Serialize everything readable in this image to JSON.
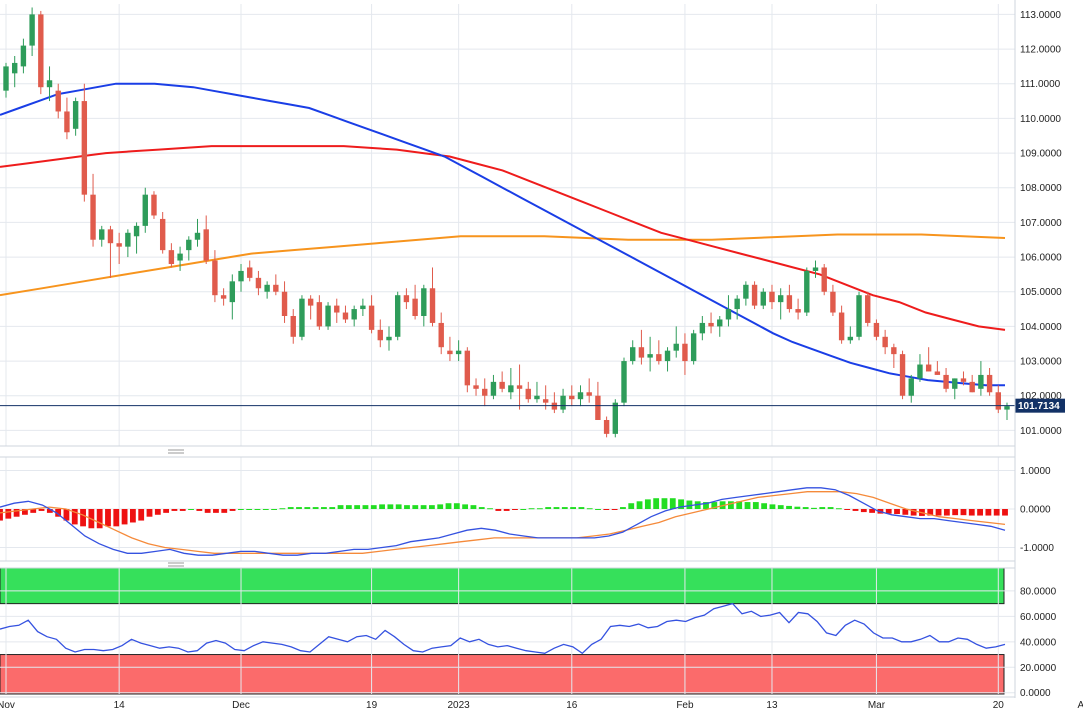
{
  "colors": {
    "up": "#2e9c5a",
    "down": "#e05b4c",
    "sma_fast": "#1a3ee6",
    "sma_mid": "#ee1c1c",
    "sma_slow": "#f7941d",
    "grid": "#e4e8ee",
    "macd_line": "#3552e0",
    "macd_signal": "#f58a3a",
    "hist_pos": "#22dd22",
    "hist_neg": "#ee1111",
    "rsi_line": "#3552e0",
    "rsi_over": "#36e05b",
    "rsi_under": "#fb6b6b",
    "badge": "#123166"
  },
  "chart_data": [
    {
      "type": "candlestick",
      "panel": "price",
      "title": "",
      "ylim": [
        100.55,
        113.3
      ],
      "yticks": [
        "113.0000",
        "112.0000",
        "111.0000",
        "110.0000",
        "109.0000",
        "108.0000",
        "107.0000",
        "106.0000",
        "105.0000",
        "104.0000",
        "103.0000",
        "102.0000",
        "101.0000"
      ],
      "last_price": 101.7134,
      "last_price_label": "101.7134",
      "x_labels": [
        {
          "label": "Nov",
          "index": 0
        },
        {
          "label": "14",
          "index": 13
        },
        {
          "label": "Dec",
          "index": 27
        },
        {
          "label": "19",
          "index": 42
        },
        {
          "label": "2023",
          "index": 52
        },
        {
          "label": "16",
          "index": 65
        },
        {
          "label": "Feb",
          "index": 78
        },
        {
          "label": "13",
          "index": 88
        },
        {
          "label": "Mar",
          "index": 100
        },
        {
          "label": "20",
          "index": 114
        },
        {
          "label": "Apr",
          "index": 124
        }
      ],
      "candles_ohlc": [
        [
          110.8,
          111.6,
          110.6,
          111.5
        ],
        [
          111.3,
          111.8,
          110.9,
          111.6
        ],
        [
          111.5,
          112.3,
          111.3,
          112.1
        ],
        [
          112.1,
          113.2,
          111.8,
          113.0
        ],
        [
          113.0,
          113.1,
          110.7,
          110.9
        ],
        [
          110.9,
          111.5,
          110.5,
          111.1
        ],
        [
          110.8,
          111.0,
          110.0,
          110.2
        ],
        [
          110.2,
          110.6,
          109.4,
          109.6
        ],
        [
          109.7,
          110.6,
          109.5,
          110.5
        ],
        [
          110.5,
          111.0,
          107.6,
          107.8
        ],
        [
          107.8,
          108.4,
          106.3,
          106.5
        ],
        [
          106.5,
          106.9,
          106.3,
          106.8
        ],
        [
          106.8,
          106.9,
          105.4,
          106.4
        ],
        [
          106.4,
          106.7,
          105.8,
          106.3
        ],
        [
          106.3,
          106.8,
          106.0,
          106.7
        ],
        [
          106.6,
          107.0,
          106.1,
          106.9
        ],
        [
          106.9,
          108.0,
          106.7,
          107.8
        ],
        [
          107.8,
          107.9,
          107.1,
          107.2
        ],
        [
          107.1,
          107.3,
          106.1,
          106.2
        ],
        [
          106.2,
          106.4,
          105.7,
          105.8
        ],
        [
          105.9,
          106.3,
          105.6,
          106.1
        ],
        [
          106.2,
          106.6,
          105.9,
          106.5
        ],
        [
          106.5,
          107.1,
          106.3,
          106.7
        ],
        [
          106.8,
          107.2,
          105.8,
          105.9
        ],
        [
          105.9,
          106.2,
          104.7,
          104.9
        ],
        [
          104.9,
          105.1,
          104.6,
          104.8
        ],
        [
          104.7,
          105.5,
          104.2,
          105.3
        ],
        [
          105.3,
          105.8,
          105.0,
          105.6
        ],
        [
          105.7,
          105.9,
          105.3,
          105.4
        ],
        [
          105.4,
          105.6,
          104.9,
          105.1
        ],
        [
          105.0,
          105.3,
          104.8,
          105.2
        ],
        [
          105.2,
          105.5,
          104.9,
          105.0
        ],
        [
          105.0,
          105.3,
          104.1,
          104.3
        ],
        [
          104.3,
          104.5,
          103.5,
          103.7
        ],
        [
          103.7,
          104.9,
          103.6,
          104.8
        ],
        [
          104.8,
          104.9,
          104.2,
          104.6
        ],
        [
          104.7,
          104.9,
          103.9,
          104.0
        ],
        [
          104.0,
          104.7,
          103.9,
          104.6
        ],
        [
          104.6,
          104.8,
          104.1,
          104.4
        ],
        [
          104.4,
          104.6,
          104.1,
          104.2
        ],
        [
          104.2,
          104.6,
          104.0,
          104.5
        ],
        [
          104.5,
          104.8,
          104.3,
          104.6
        ],
        [
          104.6,
          104.9,
          103.8,
          103.9
        ],
        [
          103.9,
          104.2,
          103.4,
          103.6
        ],
        [
          103.6,
          104.0,
          103.3,
          103.7
        ],
        [
          103.7,
          105.0,
          103.6,
          104.9
        ],
        [
          104.9,
          105.1,
          104.5,
          104.7
        ],
        [
          104.8,
          105.2,
          104.2,
          104.3
        ],
        [
          104.3,
          105.2,
          104.0,
          105.1
        ],
        [
          105.1,
          105.7,
          104.0,
          104.1
        ],
        [
          104.1,
          104.4,
          103.2,
          103.4
        ],
        [
          103.3,
          103.7,
          103.0,
          103.2
        ],
        [
          103.2,
          103.6,
          103.0,
          103.3
        ],
        [
          103.3,
          103.4,
          102.1,
          102.3
        ],
        [
          102.3,
          102.5,
          102.0,
          102.2
        ],
        [
          102.2,
          102.5,
          101.7,
          102.0
        ],
        [
          102.0,
          102.6,
          101.9,
          102.4
        ],
        [
          102.4,
          102.7,
          102.1,
          102.2
        ],
        [
          102.1,
          102.8,
          101.9,
          102.3
        ],
        [
          102.3,
          102.9,
          101.6,
          102.2
        ],
        [
          102.2,
          102.4,
          101.8,
          101.9
        ],
        [
          101.9,
          102.4,
          101.8,
          102.0
        ],
        [
          101.9,
          102.3,
          101.6,
          101.8
        ],
        [
          101.8,
          102.1,
          101.5,
          101.6
        ],
        [
          101.6,
          102.2,
          101.5,
          102.0
        ],
        [
          102.0,
          102.3,
          101.7,
          101.9
        ],
        [
          101.9,
          102.3,
          101.7,
          102.1
        ],
        [
          102.1,
          102.5,
          101.8,
          102.0
        ],
        [
          102.0,
          102.4,
          101.4,
          101.3
        ],
        [
          101.3,
          101.4,
          100.8,
          100.9
        ],
        [
          100.9,
          101.9,
          100.8,
          101.8
        ],
        [
          101.8,
          103.1,
          101.7,
          103.0
        ],
        [
          103.0,
          103.6,
          102.9,
          103.4
        ],
        [
          103.4,
          103.9,
          102.9,
          103.1
        ],
        [
          103.1,
          103.7,
          102.7,
          103.2
        ],
        [
          103.2,
          103.6,
          102.9,
          103.0
        ],
        [
          103.0,
          103.4,
          102.7,
          103.3
        ],
        [
          103.3,
          104.0,
          103.1,
          103.5
        ],
        [
          103.5,
          103.8,
          102.6,
          103.0
        ],
        [
          103.0,
          103.9,
          102.9,
          103.8
        ],
        [
          103.8,
          104.3,
          103.6,
          104.1
        ],
        [
          104.1,
          104.4,
          103.8,
          104.0
        ],
        [
          104.0,
          104.3,
          103.7,
          104.2
        ],
        [
          104.2,
          104.9,
          104.0,
          104.5
        ],
        [
          104.5,
          104.9,
          104.2,
          104.8
        ],
        [
          104.8,
          105.3,
          104.6,
          105.2
        ],
        [
          105.2,
          105.3,
          104.5,
          104.6
        ],
        [
          104.6,
          105.1,
          104.5,
          105.0
        ],
        [
          105.0,
          105.2,
          104.5,
          104.7
        ],
        [
          104.7,
          105.1,
          104.2,
          104.9
        ],
        [
          104.9,
          105.2,
          104.4,
          104.5
        ],
        [
          104.5,
          104.8,
          104.2,
          104.4
        ],
        [
          104.4,
          105.7,
          104.3,
          105.6
        ],
        [
          105.6,
          105.9,
          105.4,
          105.7
        ],
        [
          105.7,
          105.8,
          104.9,
          105.0
        ],
        [
          105.0,
          105.2,
          104.3,
          104.4
        ],
        [
          104.4,
          104.6,
          103.5,
          103.6
        ],
        [
          103.6,
          104.0,
          103.5,
          103.7
        ],
        [
          103.7,
          105.0,
          103.6,
          104.9
        ],
        [
          104.9,
          105.0,
          104.0,
          104.1
        ],
        [
          104.1,
          104.2,
          103.6,
          103.7
        ],
        [
          103.7,
          103.9,
          103.2,
          103.4
        ],
        [
          103.4,
          103.5,
          102.8,
          103.2
        ],
        [
          103.2,
          103.3,
          101.9,
          102.0
        ],
        [
          102.0,
          102.6,
          101.8,
          102.5
        ],
        [
          102.5,
          103.2,
          102.4,
          102.9
        ],
        [
          102.9,
          103.4,
          102.7,
          102.7
        ],
        [
          102.7,
          103.0,
          102.6,
          102.6
        ],
        [
          102.6,
          102.8,
          102.1,
          102.2
        ],
        [
          102.2,
          102.5,
          101.9,
          102.5
        ],
        [
          102.5,
          102.7,
          102.3,
          102.4
        ],
        [
          102.4,
          102.6,
          102.1,
          102.1
        ],
        [
          102.2,
          103.0,
          102.0,
          102.6
        ],
        [
          102.6,
          102.8,
          102.0,
          102.1
        ],
        [
          102.1,
          102.3,
          101.5,
          101.6
        ],
        [
          101.6,
          101.8,
          101.3,
          101.7
        ]
      ],
      "sma_fast": [
        110.1,
        110.3,
        110.5,
        110.7,
        110.8,
        110.9,
        111.0,
        111.0,
        111.0,
        110.95,
        110.9,
        110.8,
        110.7,
        110.6,
        110.5,
        110.4,
        110.3,
        110.1,
        109.9,
        109.7,
        109.5,
        109.3,
        109.1,
        108.9,
        108.6,
        108.3,
        108.0,
        107.7,
        107.4,
        107.1,
        106.8,
        106.5,
        106.2,
        105.9,
        105.6,
        105.3,
        105.0,
        104.7,
        104.4,
        104.1,
        103.8,
        103.55,
        103.35,
        103.15,
        102.95,
        102.8,
        102.65,
        102.55,
        102.45,
        102.4,
        102.35,
        102.3,
        102.3
      ],
      "sma_fast_start": 0,
      "sma_mid": [
        108.6,
        108.7,
        108.8,
        108.9,
        109.0,
        109.05,
        109.1,
        109.15,
        109.2,
        109.2,
        109.2,
        109.2,
        109.2,
        109.2,
        109.15,
        109.1,
        109.0,
        108.9,
        108.7,
        108.5,
        108.2,
        107.9,
        107.6,
        107.3,
        107.0,
        106.7,
        106.5,
        106.3,
        106.1,
        105.9,
        105.7,
        105.5,
        105.2,
        104.9,
        104.7,
        104.4,
        104.2,
        104.0,
        103.9
      ],
      "sma_slow": [
        104.9,
        105.1,
        105.3,
        105.5,
        105.7,
        105.9,
        106.1,
        106.2,
        106.3,
        106.4,
        106.5,
        106.6,
        106.6,
        106.6,
        106.55,
        106.5,
        106.5,
        106.5,
        106.55,
        106.6,
        106.65,
        106.65,
        106.65,
        106.6,
        106.55
      ],
      "series_labels": []
    },
    {
      "type": "line+histogram",
      "panel": "macd",
      "title": "",
      "ylim": [
        -1.35,
        1.35
      ],
      "yticks": [
        "1.0000",
        "0.0000",
        "-1.0000"
      ],
      "line_values": [
        0.05,
        0.15,
        0.2,
        0.1,
        -0.1,
        -0.4,
        -0.7,
        -0.9,
        -1.05,
        -1.15,
        -1.15,
        -1.1,
        -1.05,
        -1.15,
        -1.2,
        -1.2,
        -1.15,
        -1.1,
        -1.1,
        -1.15,
        -1.2,
        -1.2,
        -1.15,
        -1.15,
        -1.1,
        -1.05,
        -1.05,
        -1.0,
        -0.95,
        -0.85,
        -0.8,
        -0.75,
        -0.65,
        -0.55,
        -0.5,
        -0.55,
        -0.65,
        -0.7,
        -0.75,
        -0.75,
        -0.75,
        -0.75,
        -0.75,
        -0.7,
        -0.6,
        -0.4,
        -0.2,
        -0.05,
        0.05,
        0.1,
        0.15,
        0.25,
        0.3,
        0.35,
        0.4,
        0.45,
        0.5,
        0.55,
        0.55,
        0.5,
        0.35,
        0.15,
        -0.05,
        -0.15,
        -0.2,
        -0.25,
        -0.25,
        -0.3,
        -0.35,
        -0.4,
        -0.45,
        -0.55
      ],
      "signal_values": [
        -0.1,
        -0.05,
        0.0,
        0.05,
        0.0,
        -0.15,
        -0.35,
        -0.55,
        -0.75,
        -0.9,
        -1.0,
        -1.05,
        -1.1,
        -1.15,
        -1.15,
        -1.15,
        -1.15,
        -1.15,
        -1.15,
        -1.15,
        -1.15,
        -1.15,
        -1.15,
        -1.1,
        -1.05,
        -1.0,
        -0.95,
        -0.9,
        -0.85,
        -0.8,
        -0.75,
        -0.75,
        -0.75,
        -0.75,
        -0.75,
        -0.75,
        -0.7,
        -0.65,
        -0.55,
        -0.45,
        -0.35,
        -0.2,
        -0.1,
        0.0,
        0.1,
        0.2,
        0.3,
        0.35,
        0.4,
        0.45,
        0.45,
        0.45,
        0.4,
        0.3,
        0.15,
        0.0,
        -0.1,
        -0.2,
        -0.25,
        -0.3,
        -0.35,
        -0.4
      ],
      "histogram": [
        -0.3,
        -0.25,
        -0.2,
        -0.15,
        -0.1,
        -0.05,
        -0.1,
        -0.2,
        -0.3,
        -0.4,
        -0.45,
        -0.5,
        -0.5,
        -0.45,
        -0.45,
        -0.4,
        -0.35,
        -0.3,
        -0.2,
        -0.15,
        -0.1,
        -0.05,
        -0.05,
        0.0,
        -0.05,
        -0.1,
        -0.1,
        -0.1,
        -0.05,
        0.0,
        0.0,
        0.0,
        0.0,
        0.0,
        0.02,
        0.05,
        0.05,
        0.05,
        0.05,
        0.05,
        0.05,
        0.1,
        0.1,
        0.1,
        0.1,
        0.1,
        0.12,
        0.12,
        0.12,
        0.1,
        0.1,
        0.1,
        0.1,
        0.12,
        0.15,
        0.15,
        0.12,
        0.1,
        0.05,
        0.02,
        -0.05,
        -0.05,
        -0.02,
        0.0,
        0.02,
        0.02,
        0.05,
        0.05,
        0.05,
        0.05,
        0.05,
        0.02,
        0.0,
        -0.02,
        -0.02,
        0.05,
        0.15,
        0.2,
        0.25,
        0.28,
        0.28,
        0.28,
        0.25,
        0.22,
        0.2,
        0.18,
        0.18,
        0.2,
        0.2,
        0.2,
        0.18,
        0.18,
        0.15,
        0.12,
        0.1,
        0.08,
        0.06,
        0.05,
        0.03,
        0.05,
        0.05,
        0.02,
        -0.02,
        -0.05,
        -0.08,
        -0.1,
        -0.12,
        -0.12,
        -0.13,
        -0.15,
        -0.17,
        -0.18,
        -0.17,
        -0.17,
        -0.17,
        -0.16,
        -0.16,
        -0.17,
        -0.17,
        -0.17,
        -0.17,
        -0.17
      ]
    },
    {
      "type": "line",
      "panel": "rsi",
      "title": "",
      "ylim": [
        -1,
        98
      ],
      "yticks": [
        "80.0000",
        "60.0000",
        "40.0000",
        "20.0000",
        "0.0000"
      ],
      "overbought": 70,
      "oversold": 30,
      "values": [
        50,
        52,
        53,
        57,
        48,
        44,
        42,
        35,
        32,
        34,
        34,
        33,
        34,
        37,
        42,
        39,
        37,
        35,
        36,
        35,
        32,
        33,
        39,
        41,
        39,
        34,
        33,
        37,
        40,
        39,
        38,
        36,
        33,
        32,
        38,
        44,
        42,
        40,
        44,
        45,
        42,
        49,
        44,
        38,
        33,
        32,
        35,
        36,
        37,
        43,
        40,
        42,
        38,
        36,
        37,
        35,
        33,
        32,
        31,
        35,
        38,
        36,
        31,
        38,
        42,
        52,
        53,
        52,
        54,
        51,
        52,
        56,
        57,
        56,
        59,
        61,
        66,
        68,
        70,
        62,
        64,
        60,
        61,
        63,
        55,
        63,
        62,
        56,
        47,
        45,
        53,
        57,
        54,
        47,
        43,
        43,
        40,
        40,
        42,
        45,
        40,
        40,
        43,
        42,
        38,
        35,
        36,
        38
      ]
    }
  ]
}
